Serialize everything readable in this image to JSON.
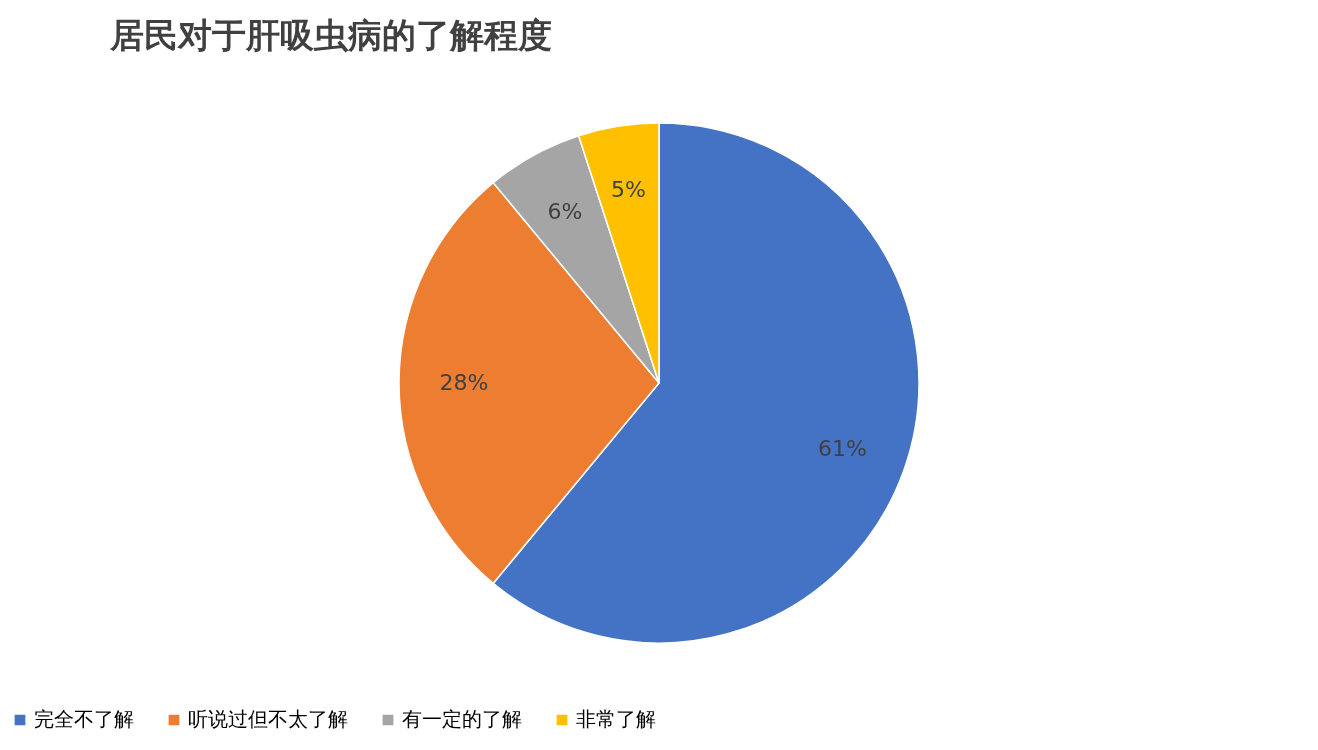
{
  "chart_data": {
    "type": "pie",
    "title": "居民对于肝吸虫病的了解程度",
    "categories": [
      "完全不了解",
      "听说过但不太了解",
      "有一定的了解",
      "非常了解"
    ],
    "values": [
      61,
      28,
      6,
      5
    ],
    "colors": [
      "#4472c4",
      "#ed7d31",
      "#a5a5a5",
      "#ffc000"
    ],
    "value_labels": [
      "61%",
      "28%",
      "6%",
      "5%"
    ],
    "legend": "bottom"
  }
}
